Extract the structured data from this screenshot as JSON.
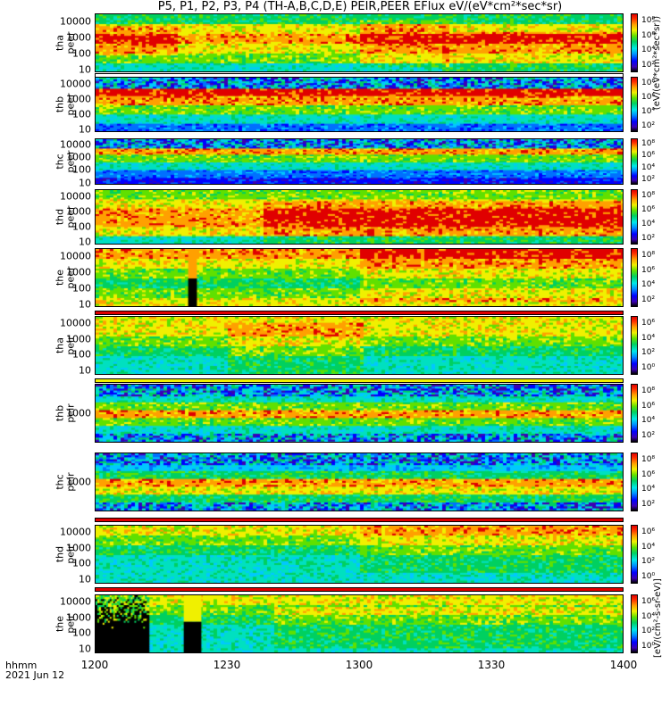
{
  "title": "P5, P1, P2, P3, P4 (TH-A,B,C,D,E) PEIR,PEER EFlux eV/(eV*cm²*sec*sr)",
  "x_axis": {
    "unit_label": "hhmm",
    "date_label": "2021 Jun 12",
    "tick_labels": [
      "1200",
      "1230",
      "1300",
      "1330",
      "1400"
    ],
    "tick_values_min": [
      0,
      30,
      60,
      90,
      120
    ]
  },
  "colorbar_title": "(eV/(eV*cm²*sec*sr))",
  "colorbar_unit": "[eV/(cm²-s-sr-eV)]",
  "colors": {
    "black": "#000000",
    "violet": "#3b00b4",
    "blue": "#0000ff",
    "cyan": "#00e8e8",
    "green": "#00d060",
    "yellow": "#f0f000",
    "orange": "#ffa000",
    "red": "#e00000"
  },
  "chart_data": [
    {
      "type": "heatmap",
      "probe": "tha",
      "species": "peer",
      "ylabel_lines": [
        "tha",
        "peer"
      ],
      "y_tick_labels": [
        "10000",
        "1000",
        "100",
        "10"
      ],
      "y_tick_values": [
        10000,
        1000,
        100,
        10
      ],
      "ylim": [
        7,
        30000
      ],
      "y_scale": "log",
      "colorbar_ticks": [
        "10⁸",
        "10⁶",
        "10⁴",
        "10²"
      ],
      "profile": [
        6,
        8,
        9,
        8,
        7,
        5
      ],
      "regions": [
        [
          0,
          18,
          2,
          7
        ],
        [
          60,
          80,
          1,
          9
        ],
        [
          78,
          120,
          3,
          10
        ]
      ]
    },
    {
      "type": "heatmap",
      "probe": "thb",
      "species": "peer",
      "ylabel_lines": [
        "thb",
        "peer"
      ],
      "y_tick_labels": [
        "10000",
        "1000",
        "100",
        "10"
      ],
      "y_tick_values": [
        10000,
        1000,
        100,
        10
      ],
      "ylim": [
        7,
        30000
      ],
      "y_scale": "log",
      "colorbar_ticks": [
        "10⁸",
        "10⁶",
        "10⁴",
        "10²"
      ],
      "profile": [
        10,
        10,
        9,
        7,
        5,
        3
      ],
      "noise_top": true
    },
    {
      "type": "heatmap",
      "probe": "thc",
      "species": "peer",
      "ylabel_lines": [
        "thc",
        "peer"
      ],
      "y_tick_labels": [
        "10000",
        "1000",
        "100",
        "10"
      ],
      "y_tick_values": [
        10000,
        1000,
        100,
        10
      ],
      "ylim": [
        7,
        30000
      ],
      "y_scale": "log",
      "colorbar_ticks": [
        "10⁸",
        "10⁶",
        "10⁴",
        "10²"
      ],
      "profile": [
        10,
        9,
        7,
        5,
        3,
        2
      ],
      "noise_top": true
    },
    {
      "type": "heatmap",
      "probe": "thd",
      "species": "peer",
      "ylabel_lines": [
        "thd",
        "peer"
      ],
      "y_tick_labels": [
        "10000",
        "1000",
        "100",
        "10"
      ],
      "y_tick_values": [
        10000,
        1000,
        100,
        10
      ],
      "ylim": [
        7,
        30000
      ],
      "y_scale": "log",
      "colorbar_ticks": [
        "10⁸",
        "10⁶",
        "10⁴",
        "10²"
      ],
      "profile": [
        7,
        8,
        9,
        9,
        8,
        5
      ],
      "regions": [
        [
          38,
          120,
          2,
          10
        ]
      ]
    },
    {
      "type": "heatmap",
      "probe": "the",
      "species": "peer",
      "ylabel_lines": [
        "the",
        "peer"
      ],
      "y_tick_labels": [
        "10000",
        "1000",
        "100",
        "10"
      ],
      "y_tick_values": [
        10000,
        1000,
        100,
        10
      ],
      "ylim": [
        7,
        30000
      ],
      "y_scale": "log",
      "colorbar_ticks": [
        "10⁸",
        "10⁶",
        "10⁴",
        "10²"
      ],
      "profile": [
        9,
        8,
        7,
        6,
        7,
        8
      ],
      "gap_minutes": [
        21,
        23
      ],
      "regions": [
        [
          60,
          120,
          0,
          9
        ]
      ]
    },
    {
      "type": "heatmap",
      "probe": "tha",
      "species": "peir",
      "ylabel_lines": [
        "tha",
        "peir"
      ],
      "y_tick_labels": [
        "10000",
        "1000",
        "100",
        "10"
      ],
      "y_tick_values": [
        10000,
        1000,
        100,
        10
      ],
      "ylim": [
        5,
        30000
      ],
      "y_scale": "log",
      "colorbar_ticks": [
        "10⁶",
        "10⁴",
        "10²",
        "10⁰"
      ],
      "profile": [
        8,
        8,
        7,
        6,
        5,
        5
      ],
      "regions": [
        [
          30,
          60,
          1,
          10
        ]
      ]
    },
    {
      "type": "heatmap",
      "probe": "thb",
      "species": "peir",
      "ylabel_lines": [
        "thb",
        "peir"
      ],
      "y_tick_labels": [
        "1000"
      ],
      "y_tick_values": [
        1000
      ],
      "ylim": [
        200,
        5000
      ],
      "y_scale": "log",
      "colorbar_ticks": [
        "10⁸",
        "10⁶",
        "10⁴",
        "10²"
      ],
      "profile": [
        3,
        5,
        7,
        9,
        7,
        5,
        3
      ],
      "noise_top": true,
      "noise_bottom": true
    },
    {
      "type": "heatmap",
      "probe": "thc",
      "species": "peir",
      "ylabel_lines": [
        "thc",
        "peir"
      ],
      "y_tick_labels": [
        "1000"
      ],
      "y_tick_values": [
        1000
      ],
      "ylim": [
        200,
        5000
      ],
      "y_scale": "log",
      "colorbar_ticks": [
        "10⁸",
        "10⁶",
        "10⁴",
        "10²"
      ],
      "profile": [
        3,
        4,
        6,
        9,
        8,
        6,
        3
      ],
      "noise_top": true,
      "noise_bottom": true
    },
    {
      "type": "heatmap",
      "probe": "thd",
      "species": "peir",
      "ylabel_lines": [
        "thd",
        "peir"
      ],
      "y_tick_labels": [
        "10000",
        "1000",
        "100",
        "10"
      ],
      "y_tick_values": [
        10000,
        1000,
        100,
        10
      ],
      "ylim": [
        5,
        30000
      ],
      "y_scale": "log",
      "colorbar_ticks": [
        "10⁶",
        "10⁴",
        "10²",
        "10⁰"
      ],
      "profile": [
        8,
        7,
        6,
        5,
        5,
        5
      ],
      "regions": [
        [
          60,
          120,
          0,
          8
        ]
      ]
    },
    {
      "type": "heatmap",
      "probe": "the",
      "species": "peir",
      "ylabel_lines": [
        "the",
        "peir"
      ],
      "y_tick_labels": [
        "10000",
        "1000",
        "100",
        "10"
      ],
      "y_tick_values": [
        10000,
        1000,
        100,
        10
      ],
      "ylim": [
        5,
        30000
      ],
      "y_scale": "log",
      "colorbar_ticks": [
        "10⁶",
        "10⁴",
        "10²",
        "10⁰"
      ],
      "profile": [
        8,
        7,
        6,
        5,
        5,
        5
      ],
      "gap_minutes": [
        0,
        12
      ],
      "gap_bar_minutes": [
        20,
        24
      ],
      "regions": [
        [
          40,
          120,
          2,
          9
        ]
      ]
    }
  ]
}
